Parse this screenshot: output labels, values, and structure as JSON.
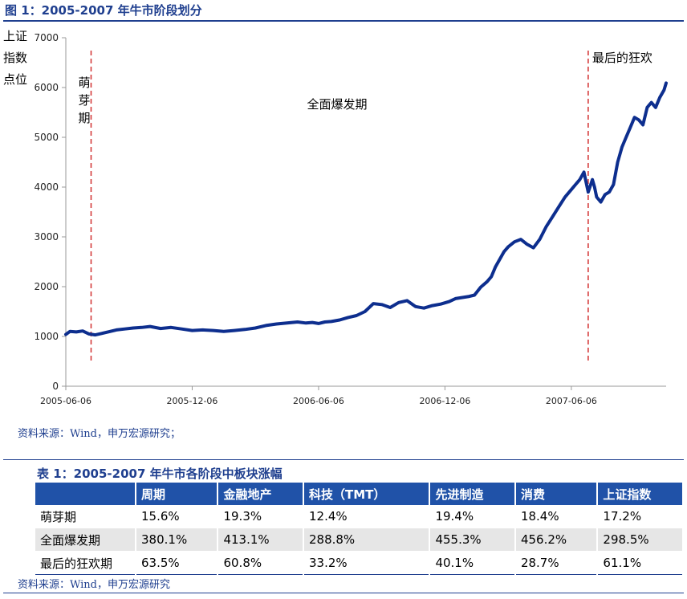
{
  "figure": {
    "title": "图 1：2005-2007 年牛市阶段划分",
    "source": "资料来源：Wind，申万宏源研究；"
  },
  "chart_data": {
    "type": "line",
    "title": "图 1：2005-2007 年牛市阶段划分",
    "ylabel": "上证指数点位",
    "ylabel_lines": [
      "上证",
      "指数",
      "点位"
    ],
    "ylim": [
      0,
      7000
    ],
    "yticks": [
      "0",
      "1000",
      "2000",
      "3000",
      "4000",
      "5000",
      "6000",
      "7000"
    ],
    "xticks": [
      "2005-06-06",
      "2005-12-06",
      "2006-06-06",
      "2006-12-06",
      "2007-06-06"
    ],
    "xlim_months": [
      0,
      28.5
    ],
    "grid": false,
    "color": "#0d2e8e",
    "phase_lines": [
      {
        "month": 1.2,
        "label": "萌芽期"
      },
      {
        "month": 24.8,
        "label": "最后的狂欢"
      }
    ],
    "phase_middle_label": "全面爆发期",
    "series": [
      {
        "name": "上证指数",
        "x": [
          0,
          0.2,
          0.5,
          0.8,
          1.1,
          1.4,
          1.7,
          2.0,
          2.4,
          2.8,
          3.2,
          3.6,
          4.0,
          4.5,
          5.0,
          5.5,
          6.0,
          6.5,
          7.0,
          7.5,
          8.0,
          8.5,
          9.0,
          9.5,
          10.0,
          10.5,
          11.0,
          11.4,
          11.7,
          12.0,
          12.3,
          12.6,
          13.0,
          13.4,
          13.8,
          14.2,
          14.6,
          15.0,
          15.4,
          15.8,
          16.2,
          16.6,
          17.0,
          17.4,
          17.8,
          18.2,
          18.5,
          18.8,
          19.1,
          19.4,
          19.7,
          20.0,
          20.2,
          20.4,
          20.6,
          20.8,
          21.0,
          21.3,
          21.6,
          21.9,
          22.2,
          22.5,
          22.8,
          23.1,
          23.4,
          23.7,
          24.0,
          24.2,
          24.4,
          24.6,
          24.8,
          25.0,
          25.1,
          25.2,
          25.4,
          25.6,
          25.8,
          26.0,
          26.2,
          26.4,
          26.6,
          26.8,
          27.0,
          27.2,
          27.4,
          27.6,
          27.8,
          28.0,
          28.2,
          28.4,
          28.5
        ],
        "y": [
          1040,
          1100,
          1090,
          1110,
          1050,
          1030,
          1060,
          1090,
          1130,
          1150,
          1170,
          1180,
          1200,
          1160,
          1180,
          1150,
          1120,
          1130,
          1120,
          1100,
          1120,
          1140,
          1170,
          1220,
          1250,
          1270,
          1290,
          1270,
          1280,
          1260,
          1290,
          1300,
          1330,
          1380,
          1420,
          1500,
          1660,
          1640,
          1580,
          1680,
          1720,
          1600,
          1570,
          1620,
          1650,
          1700,
          1760,
          1780,
          1800,
          1830,
          1990,
          2100,
          2200,
          2400,
          2550,
          2700,
          2800,
          2900,
          2950,
          2850,
          2780,
          2950,
          3200,
          3400,
          3600,
          3800,
          3950,
          4050,
          4150,
          4300,
          3900,
          4150,
          4000,
          3800,
          3700,
          3850,
          3900,
          4050,
          4500,
          4800,
          5000,
          5200,
          5400,
          5350,
          5250,
          5600,
          5700,
          5600,
          5800,
          5950,
          6090
        ]
      }
    ]
  },
  "table": {
    "title": "表 1：2005-2007 年牛市各阶段中板块涨幅",
    "headers": [
      "",
      "周期",
      "金融地产",
      "科技（TMT）",
      "先进制造",
      "消费",
      "上证指数"
    ],
    "rows": [
      [
        "萌芽期",
        "15.6%",
        "19.3%",
        "12.4%",
        "19.4%",
        "18.4%",
        "17.2%"
      ],
      [
        "全面爆发期",
        "380.1%",
        "413.1%",
        "288.8%",
        "455.3%",
        "456.2%",
        "298.5%"
      ],
      [
        "最后的狂欢期",
        "63.5%",
        "60.8%",
        "33.2%",
        "40.1%",
        "28.7%",
        "61.1%"
      ]
    ],
    "source": "资料来源：Wind，申万宏源研究"
  }
}
